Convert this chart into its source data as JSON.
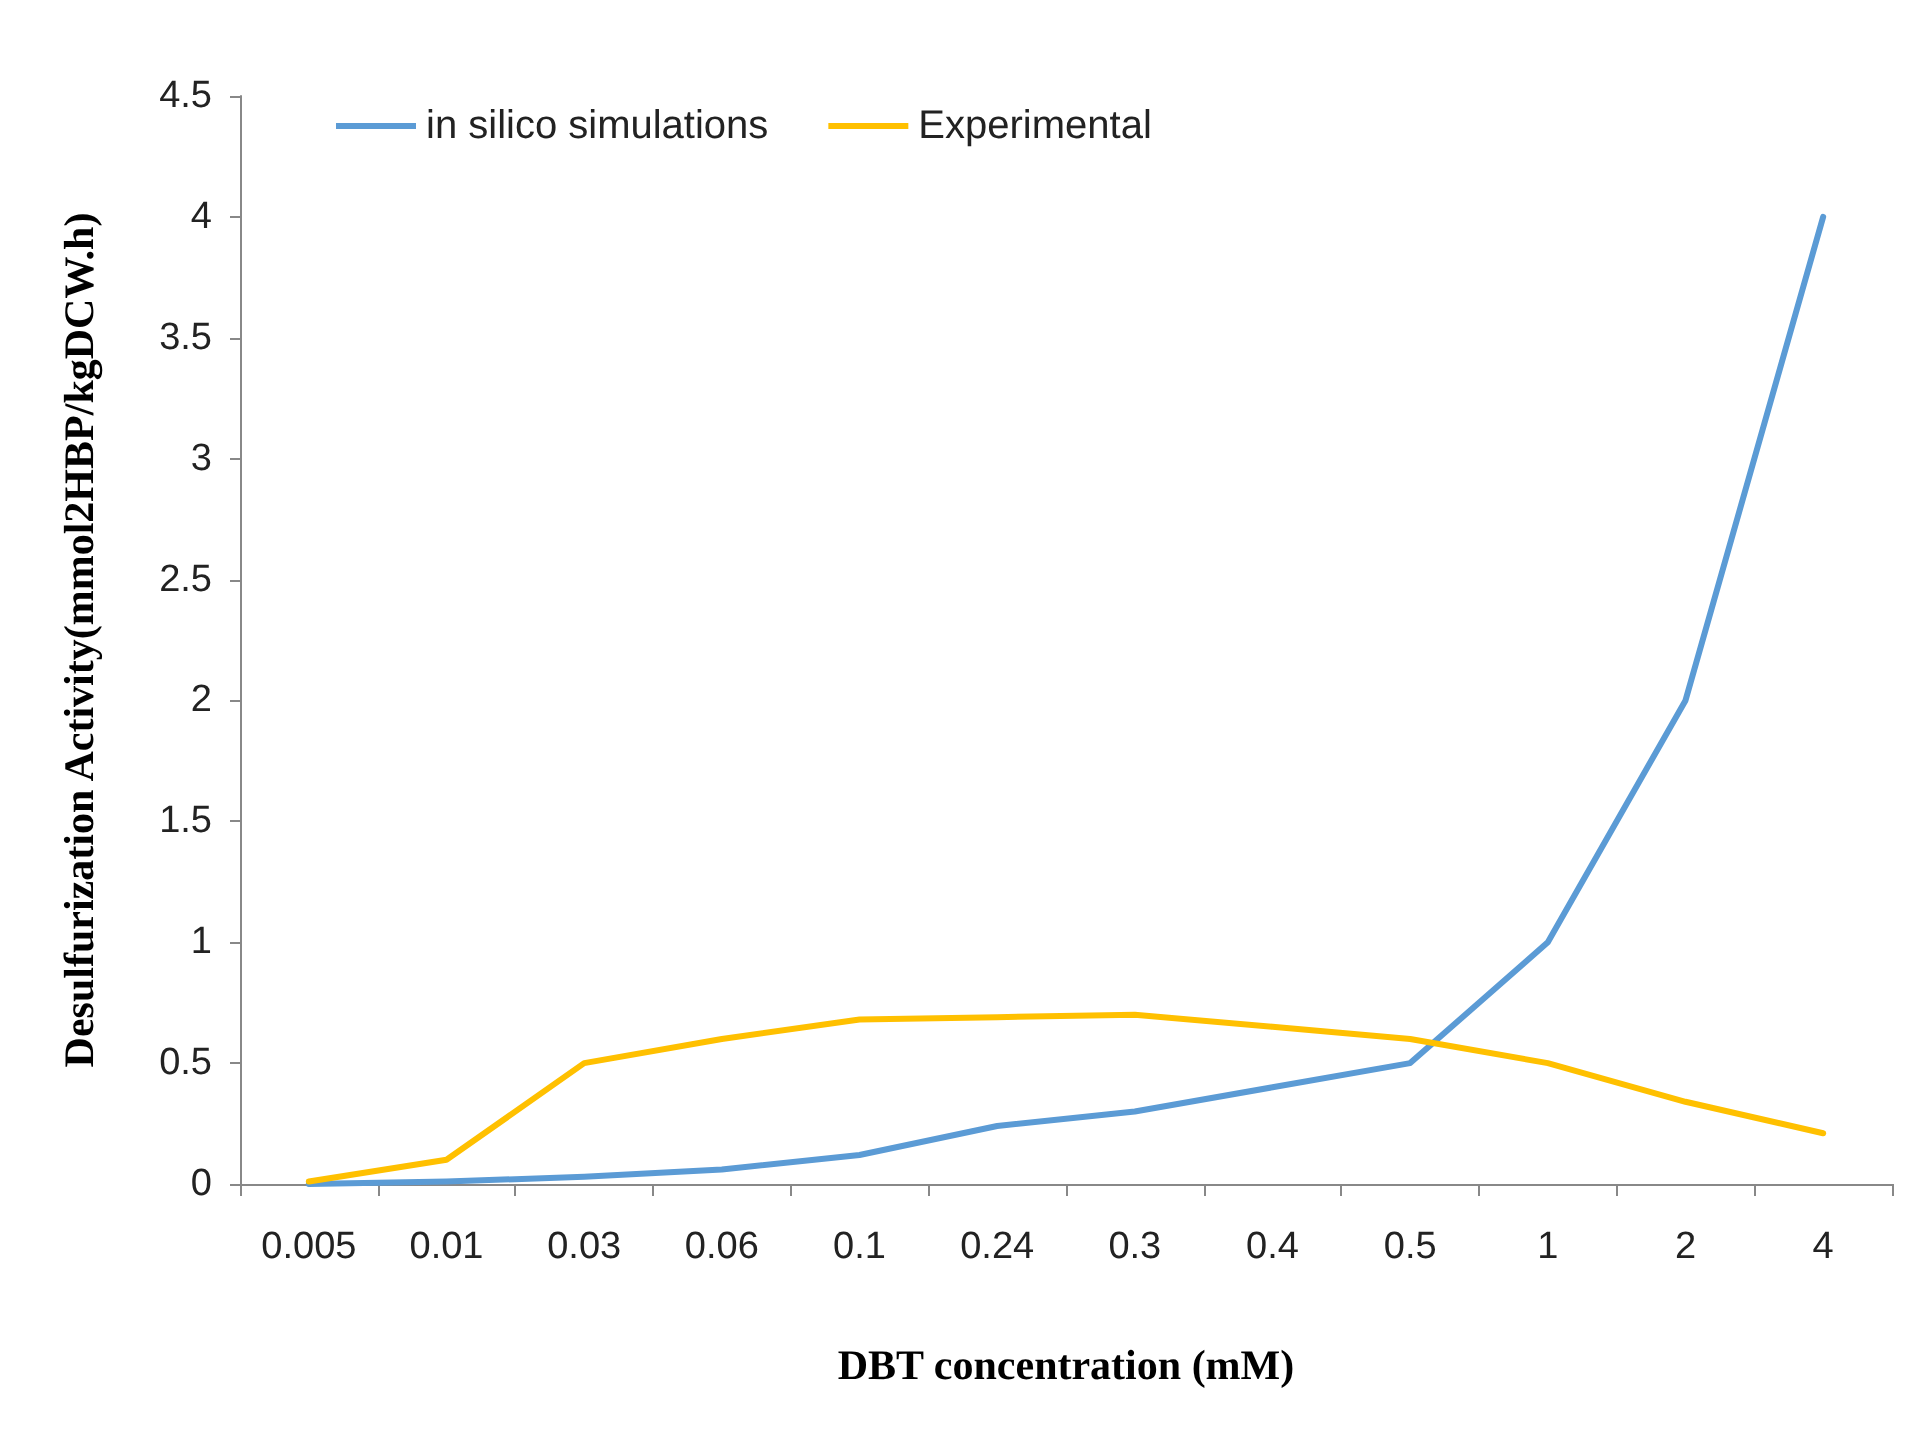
{
  "chart_data": {
    "type": "line",
    "xlabel": "DBT concentration (mM)",
    "ylabel": "Desulfurization Activity(mmol2HBP/kgDCW.h)",
    "categories": [
      "0.005",
      "0.01",
      "0.03",
      "0.06",
      "0.1",
      "0.24",
      "0.3",
      "0.4",
      "0.5",
      "1",
      "2",
      "4"
    ],
    "series": [
      {
        "name": "in silico simulations",
        "color": "#5b9bd5",
        "values": [
          0,
          0.01,
          0.03,
          0.06,
          0.12,
          0.24,
          0.3,
          0.4,
          0.5,
          1,
          2,
          4
        ]
      },
      {
        "name": "Experimental",
        "color": "#ffc000",
        "values": [
          0.01,
          0.1,
          0.5,
          0.6,
          0.68,
          0.69,
          0.7,
          0.65,
          0.6,
          0.5,
          0.34,
          0.21
        ]
      }
    ],
    "ylim": [
      0,
      4.5
    ],
    "yticks": [
      0,
      0.5,
      1,
      1.5,
      2,
      2.5,
      3,
      3.5,
      4,
      4.5
    ],
    "grid": false,
    "legend": "top left",
    "marker": "none",
    "line_style": "solid"
  }
}
